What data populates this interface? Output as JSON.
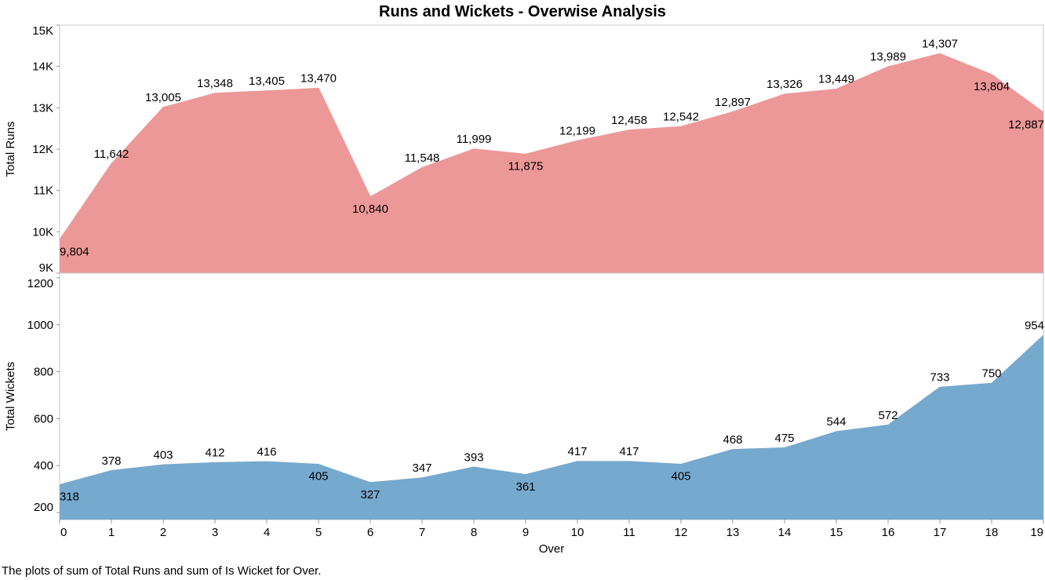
{
  "title": "Runs and Wickets - Overwise Analysis",
  "caption": "The plots of sum of Total Runs and sum of Is Wicket for Over.",
  "chart_data": {
    "type": "area",
    "title": "Runs and Wickets - Overwise Analysis",
    "xlabel": "Over",
    "x": [
      0,
      1,
      2,
      3,
      4,
      5,
      6,
      7,
      8,
      9,
      10,
      11,
      12,
      13,
      14,
      15,
      16,
      17,
      18,
      19
    ],
    "grid": false,
    "panels": [
      {
        "name": "Total Runs",
        "ylabel": "Total Runs",
        "color": "#ED9898",
        "ylim": [
          9000,
          15000
        ],
        "yticks": [
          9000,
          10000,
          11000,
          12000,
          13000,
          14000,
          15000
        ],
        "ytick_labels": [
          "9K",
          "10K",
          "11K",
          "12K",
          "13K",
          "14K",
          "15K"
        ],
        "values": [
          9804,
          11642,
          13005,
          13348,
          13405,
          13470,
          10840,
          11548,
          11999,
          11875,
          12199,
          12458,
          12542,
          12897,
          13326,
          13449,
          13989,
          14307,
          13804,
          12887
        ],
        "data_labels": [
          "9,804",
          "11,642",
          "13,005",
          "13,348",
          "13,405",
          "13,470",
          "10,840",
          "11,548",
          "11,999",
          "11,875",
          "12,199",
          "12,458",
          "12,542",
          "12,897",
          "13,326",
          "13,449",
          "13,989",
          "14,307",
          "13,804",
          "12,887"
        ]
      },
      {
        "name": "Total Wickets",
        "ylabel": "Total Wickets",
        "color": "#76A9CE",
        "ylim": [
          170,
          1220
        ],
        "yticks": [
          200,
          400,
          600,
          800,
          1000,
          1200
        ],
        "ytick_labels": [
          "200",
          "400",
          "600",
          "800",
          "1000",
          "1200"
        ],
        "values": [
          318,
          378,
          403,
          412,
          416,
          405,
          327,
          347,
          393,
          361,
          417,
          417,
          405,
          468,
          475,
          544,
          572,
          733,
          750,
          954
        ],
        "data_labels": [
          "318",
          "378",
          "403",
          "412",
          "416",
          "405",
          "327",
          "347",
          "393",
          "361",
          "417",
          "417",
          "405",
          "468",
          "475",
          "544",
          "572",
          "733",
          "750",
          "954"
        ]
      }
    ]
  }
}
